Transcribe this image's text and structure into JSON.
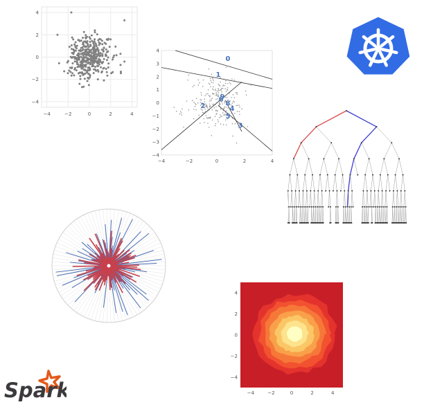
{
  "chart_data": [
    {
      "type": "scatter",
      "x_ticks": [
        "−4",
        "−2",
        "0",
        "2",
        "4"
      ],
      "y_ticks": [
        "4",
        "2",
        "0",
        "−2",
        "−4"
      ],
      "xlim": [
        -4.5,
        4.5
      ],
      "ylim": [
        -4.5,
        4.5
      ],
      "grid": true,
      "point_color": "#808080",
      "n_points": 400,
      "distribution": "standard-normal-2d",
      "outliers": [
        [
          -1.7,
          4.0
        ],
        [
          3.3,
          3.3
        ],
        [
          -3.0,
          2.0
        ],
        [
          3.3,
          -0.4
        ]
      ]
    },
    {
      "type": "scatter",
      "x_ticks": [
        "−4",
        "−2",
        "0",
        "2",
        "4"
      ],
      "y_ticks": [
        "4",
        "3",
        "2",
        "1",
        "0",
        "−1",
        "−2",
        "−3",
        "−4"
      ],
      "xlim": [
        -4,
        4
      ],
      "ylim": [
        -4,
        4
      ],
      "partition_labels": [
        {
          "text": "0",
          "x": 0.8,
          "y": 3.2
        },
        {
          "text": "1",
          "x": 0.1,
          "y": 2.0
        },
        {
          "text": "2",
          "x": -1.0,
          "y": -0.4
        },
        {
          "text": "5",
          "x": 0.8,
          "y": -1.2
        },
        {
          "text": "3",
          "x": 1.7,
          "y": -1.9
        },
        {
          "text": "4",
          "x": 1.1,
          "y": -0.6
        },
        {
          "text": "6",
          "x": 0.3,
          "y": 0.1
        },
        {
          "text": "8",
          "x": 0.8,
          "y": -0.2
        },
        {
          "text": "9",
          "x": 0.4,
          "y": 0.3
        }
      ],
      "split_lines": [
        [
          [
            -3,
            4
          ],
          [
            4,
            1.8
          ]
        ],
        [
          [
            -4,
            2.7
          ],
          [
            4,
            1.1
          ]
        ],
        [
          [
            -4,
            -3.6
          ],
          [
            1.8,
            1.6
          ]
        ],
        [
          [
            0.1,
            -0.2
          ],
          [
            4,
            -3.7
          ]
        ],
        [
          [
            0.6,
            0.2
          ],
          [
            1.8,
            -2.2
          ]
        ]
      ],
      "label_color": "#4a74b8",
      "point_color": "#999999",
      "n_points": 260
    },
    {
      "type": "tree",
      "depth": 7,
      "highlight_paths": [
        {
          "color": "#d84a4a",
          "path": [
            "root",
            "L",
            "L",
            "L"
          ]
        },
        {
          "color": "#3b3bd6",
          "path": [
            "root",
            "R",
            "L",
            "L",
            "L",
            "L",
            "L"
          ]
        }
      ],
      "node_color": "#333333",
      "edge_color": "#9a9a9a"
    },
    {
      "type": "radial-bar",
      "n_spokes": 90,
      "colors": {
        "positive": "#c8414b",
        "negative": "#4a6fb5"
      },
      "circle_color": "#cfcfcf"
    },
    {
      "type": "heatmap",
      "x_ticks": [
        "−4",
        "−2",
        "0",
        "2",
        "4"
      ],
      "y_ticks": [
        "4",
        "2",
        "0",
        "−2",
        "−4"
      ],
      "xlim": [
        -5,
        5
      ],
      "ylim": [
        -5,
        5
      ],
      "levels": [
        "#c81e27",
        "#e4332d",
        "#f2522f",
        "#f67839",
        "#f9a04a",
        "#fbc766",
        "#fde38d",
        "#ffffc4"
      ]
    }
  ],
  "logos": {
    "kubernetes": {
      "icon": "helm-wheel-icon",
      "color": "#326ce5"
    },
    "spark": {
      "icon": "spark-logo-icon",
      "wordmark": "Spark",
      "star_color": "#e25a1c",
      "text_color": "#3c3a3e"
    }
  }
}
